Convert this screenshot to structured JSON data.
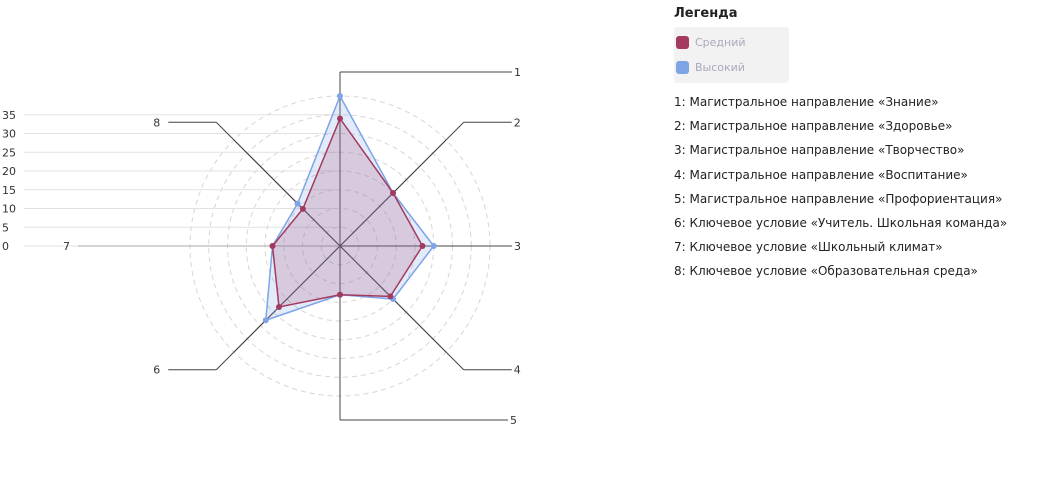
{
  "chart_data": {
    "type": "radar",
    "axes": [
      "1",
      "2",
      "3",
      "4",
      "5",
      "6",
      "7",
      "8"
    ],
    "r_ticks": [
      0,
      5,
      10,
      15,
      20,
      25,
      30,
      35
    ],
    "r_max": 40,
    "series": [
      {
        "name": "Средний",
        "color": "#a33a5f",
        "values": [
          34,
          20,
          22,
          19,
          13,
          23,
          18,
          14
        ]
      },
      {
        "name": "Высокий",
        "color": "#7ea4e6",
        "values": [
          40,
          20,
          25,
          20,
          13,
          28,
          18,
          16
        ]
      }
    ],
    "legend_title": "Легенда",
    "legend_position": "top-right"
  },
  "axis_descriptions": [
    "1: Магистральное направление «Знание»",
    "2: Магистральное направление «Здоровье»",
    "3: Магистральное направление «Творчество»",
    "4: Магистральное направление «Воспитание»",
    "5: Магистральное направление «Профориентация»",
    "6: Ключевое условие «Учитель. Школьная команда»",
    "7: Ключевое условие «Школьный климат»",
    "8: Ключевое условие «Образовательная среда»"
  ]
}
